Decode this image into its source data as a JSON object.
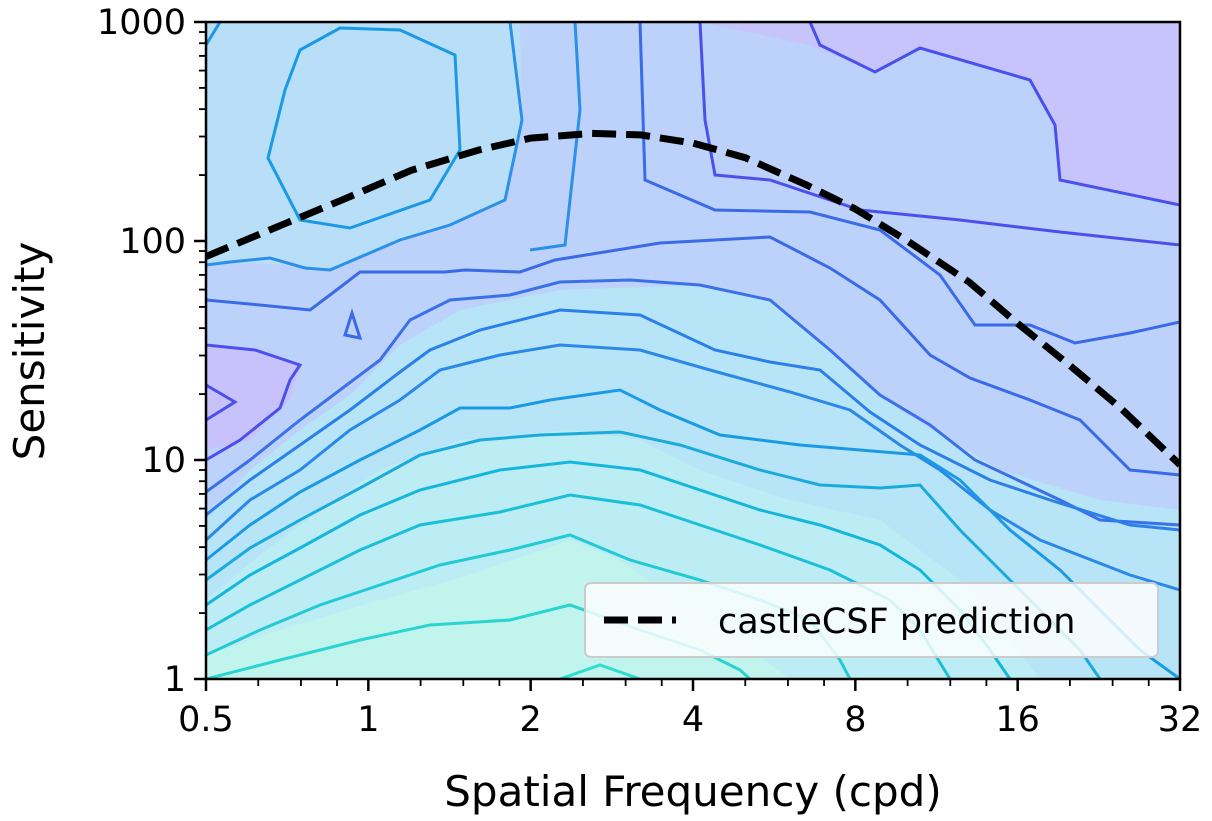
{
  "chart_data": {
    "type": "contour",
    "xlabel": "Spatial Frequency (cpd)",
    "ylabel": "Sensitivity",
    "x_scale": "log2",
    "y_scale": "log10",
    "xlim": [
      0.5,
      32
    ],
    "ylim": [
      1,
      1000
    ],
    "x_ticks": [
      0.5,
      1,
      2,
      4,
      8,
      16,
      32
    ],
    "x_tick_labels": [
      "0.5",
      "1",
      "2",
      "4",
      "8",
      "16",
      "32"
    ],
    "y_ticks": [
      1,
      10,
      100,
      1000
    ],
    "y_tick_labels": [
      "1",
      "10",
      "100",
      "1000"
    ],
    "contour_colormap": [
      "#c0f5ee",
      "#b4e8f5",
      "#b8dcf8",
      "#bcd2fa",
      "#c4c6fb",
      "#c8c2fc"
    ],
    "contour_line_colors": [
      "#2ad4d0",
      "#1ab6dc",
      "#1a9ae4",
      "#2a80e8",
      "#3a6ae8",
      "#4a50ec"
    ],
    "series": [
      {
        "name": "castleCSF prediction",
        "style": "dashed",
        "color": "#000000",
        "x": [
          0.5,
          0.7,
          0.9,
          1.2,
          1.6,
          2.0,
          2.6,
          3.2,
          4.0,
          5.0,
          6.5,
          8.0,
          10.0,
          13.0,
          16.0,
          20.0,
          25.0,
          32.0
        ],
        "y": [
          85,
          120,
          155,
          210,
          260,
          295,
          310,
          305,
          280,
          240,
          180,
          140,
          100,
          65,
          42,
          27,
          17,
          9.5
        ]
      }
    ],
    "legend": {
      "position": "lower-right",
      "entries": [
        "castleCSF prediction"
      ]
    }
  }
}
